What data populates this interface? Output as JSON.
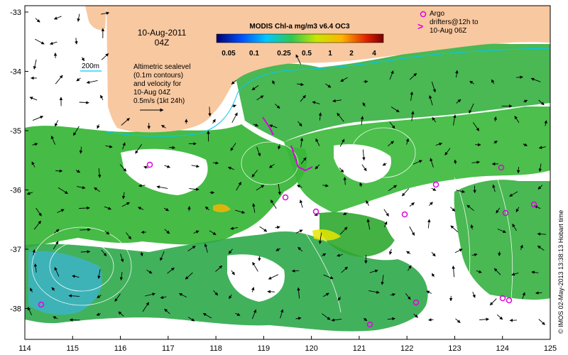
{
  "map": {
    "date_label": "10-Aug-2011",
    "time_label": "04Z",
    "colorbar_title": "MODIS Chl-a mg/m3 v6.4 OC3",
    "colorbar_ticks": [
      "0.05",
      "0.1",
      "0.25",
      "0.5",
      "1",
      "2",
      "4"
    ],
    "isobath_label": "200m",
    "description_lines": [
      "Altimetric sealevel",
      "(0.1m contours)",
      "and velocity for",
      "10-Aug 04Z",
      "0.5m/s (1kt 24h)"
    ],
    "argo_label_lines": [
      "Argo",
      "drifters@12h to",
      "10-Aug 06Z"
    ],
    "credit": "© IMOS 02-May-2013 13:38:13 Hobart time",
    "lon_ticks": [
      "114",
      "115",
      "116",
      "117",
      "118",
      "119",
      "120",
      "121",
      "122",
      "123",
      "124",
      "125"
    ],
    "lat_ticks": [
      "-33",
      "-34",
      "-35",
      "-36",
      "-37",
      "-38"
    ],
    "colors": {
      "land": "#f8c8a0",
      "chl_low": "#3cb4c8",
      "chl_mid": "#32b432",
      "chl_high": "#e6e600",
      "argo": "#e000e0",
      "vector": "#000000",
      "contour": "#ffffff",
      "isobath": "#00c8ff"
    }
  }
}
